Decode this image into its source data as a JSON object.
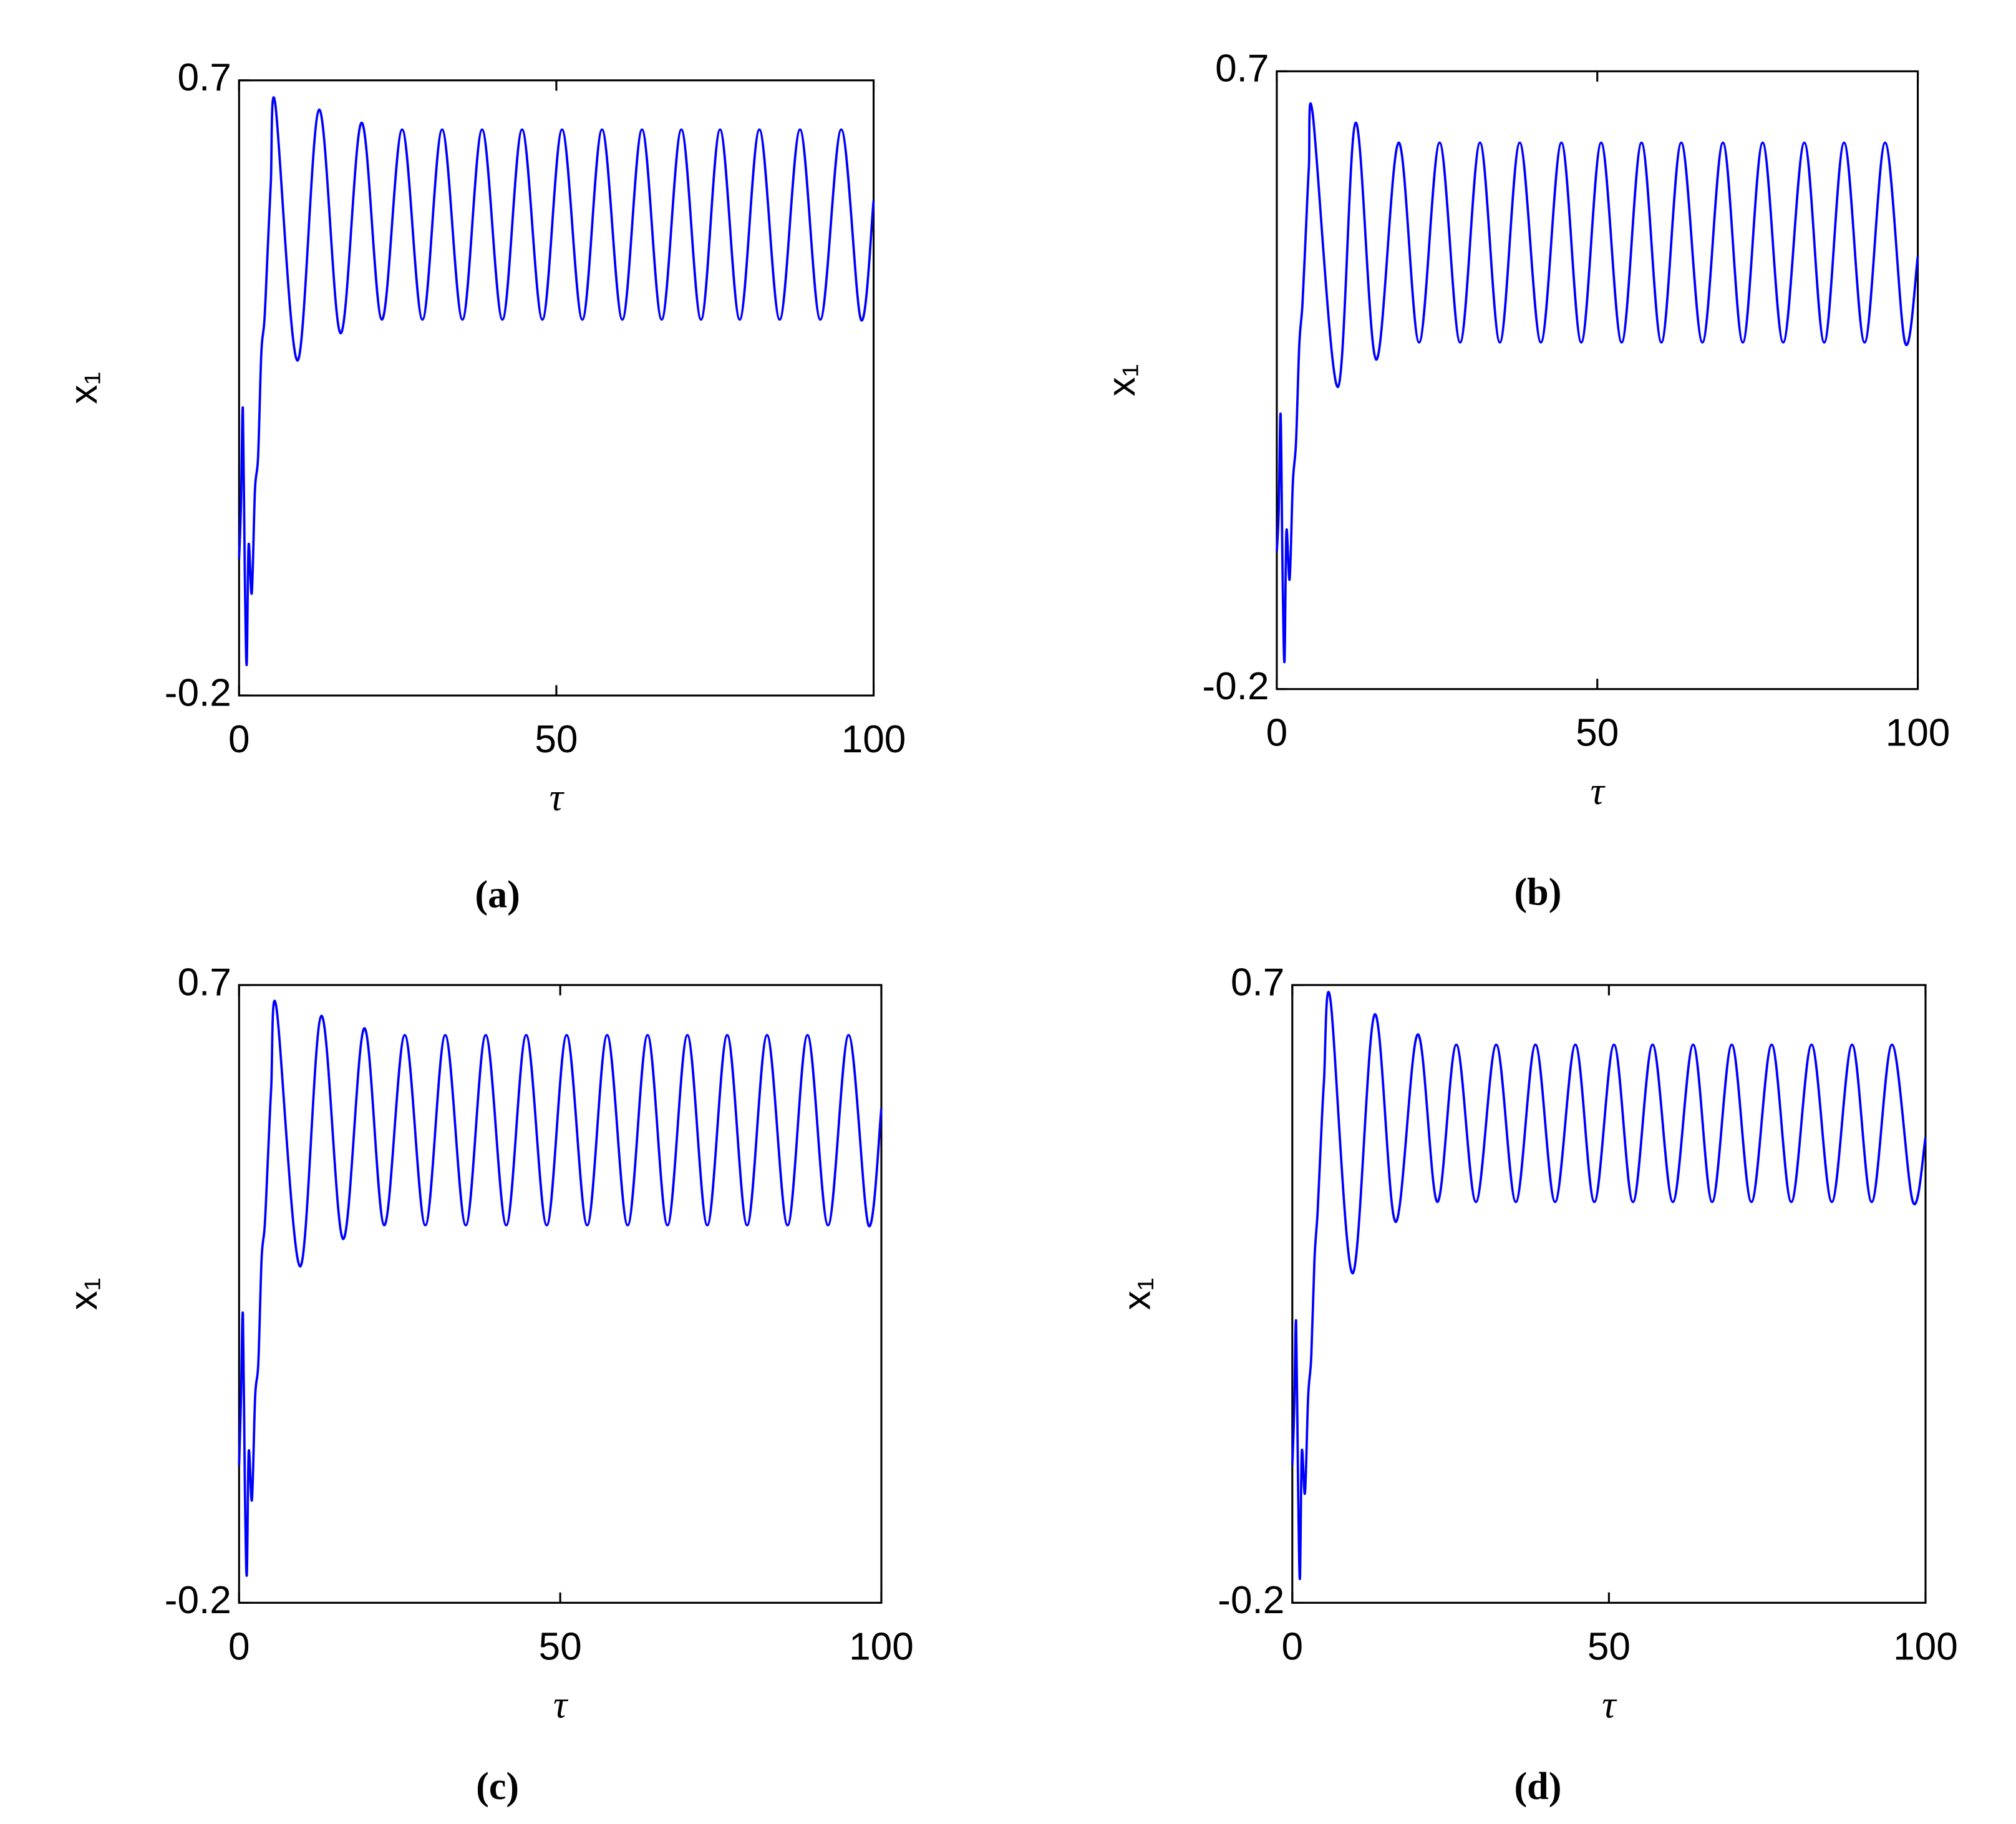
{
  "chart_data": [
    {
      "type": "line",
      "label": "(a)",
      "xlabel": "τ",
      "ylabel": "x₁",
      "color": "#0000ff",
      "xlim": [
        0,
        100
      ],
      "ylim": [
        -0.2,
        0.7
      ],
      "xticks": [
        0,
        50,
        100
      ],
      "yticks": [
        -0.2,
        0.7
      ],
      "x": [
        0,
        0.3,
        0.6,
        0.9,
        1.2,
        1.5,
        2,
        2.5,
        3,
        3.5,
        4,
        4.5,
        5,
        5.7,
        9.2,
        12.6,
        16,
        19.3,
        22.5,
        25.7,
        28.9,
        32,
        35.2,
        38.3,
        41.5,
        44.6,
        47.8,
        50.9,
        54.1,
        57.2,
        60.4,
        63.5,
        66.6,
        69.7,
        72.8,
        75.8,
        78.9,
        82,
        85.2,
        88.4,
        91.6,
        94.9,
        98,
        100
      ],
      "values": [
        0.0,
        0.08,
        0.22,
        -0.02,
        -0.155,
        0.02,
        -0.05,
        0.1,
        0.15,
        0.3,
        0.35,
        0.45,
        0.55,
        0.666,
        0.29,
        0.657,
        0.33,
        0.638,
        0.35,
        0.628,
        0.35,
        0.628,
        0.35,
        0.628,
        0.35,
        0.628,
        0.35,
        0.628,
        0.35,
        0.628,
        0.35,
        0.628,
        0.35,
        0.628,
        0.35,
        0.628,
        0.35,
        0.628,
        0.35,
        0.628,
        0.35,
        0.628,
        0.35,
        0.524
      ]
    },
    {
      "type": "line",
      "label": "(b)",
      "xlabel": "τ",
      "ylabel": "x₁",
      "color": "#0000ff",
      "xlim": [
        0,
        100
      ],
      "ylim": [
        -0.2,
        0.7
      ],
      "xticks": [
        0,
        50,
        100
      ],
      "yticks": [
        -0.2,
        0.7
      ],
      "x": [
        0,
        0.3,
        0.6,
        0.9,
        1.2,
        1.5,
        2,
        2.5,
        3,
        3.5,
        4,
        4.5,
        5,
        5.6,
        9.5,
        12.3,
        15.5,
        19,
        22.2,
        25.4,
        28.6,
        31.7,
        34.8,
        37.9,
        41.2,
        44.4,
        47.5,
        50.6,
        53.8,
        56.9,
        60,
        63.1,
        66.4,
        69.6,
        72.7,
        75.8,
        79,
        82.3,
        85.4,
        88.5,
        91.7,
        94.9,
        98,
        100
      ],
      "values": [
        0.0,
        0.06,
        0.2,
        -0.03,
        -0.16,
        0.03,
        -0.04,
        0.1,
        0.16,
        0.3,
        0.36,
        0.46,
        0.56,
        0.638,
        0.24,
        0.625,
        0.28,
        0.596,
        0.305,
        0.596,
        0.305,
        0.596,
        0.305,
        0.596,
        0.305,
        0.596,
        0.305,
        0.596,
        0.305,
        0.596,
        0.305,
        0.596,
        0.305,
        0.596,
        0.305,
        0.596,
        0.305,
        0.596,
        0.305,
        0.596,
        0.305,
        0.596,
        0.305,
        0.43
      ]
    },
    {
      "type": "line",
      "label": "(c)",
      "xlabel": "τ",
      "ylabel": "x₁",
      "color": "#0000ff",
      "xlim": [
        0,
        100
      ],
      "ylim": [
        -0.2,
        0.7
      ],
      "xticks": [
        0,
        50,
        100
      ],
      "yticks": [
        -0.2,
        0.7
      ],
      "x": [
        0,
        0.3,
        0.6,
        0.9,
        1.2,
        1.5,
        2,
        2.5,
        3,
        3.5,
        4,
        4.5,
        5,
        5.8,
        9.5,
        12.8,
        16.2,
        19.5,
        22.6,
        25.8,
        29,
        32.1,
        35.3,
        38.4,
        41.6,
        44.7,
        47.9,
        51,
        54.2,
        57.3,
        60.5,
        63.6,
        66.7,
        69.8,
        72.9,
        76,
        79.1,
        82.2,
        85.4,
        88.5,
        91.7,
        94.9,
        98,
        100
      ],
      "values": [
        0.0,
        0.1,
        0.22,
        -0.03,
        -0.16,
        0.02,
        -0.05,
        0.1,
        0.15,
        0.3,
        0.35,
        0.45,
        0.55,
        0.668,
        0.29,
        0.655,
        0.33,
        0.637,
        0.35,
        0.627,
        0.35,
        0.627,
        0.35,
        0.627,
        0.35,
        0.627,
        0.35,
        0.627,
        0.35,
        0.627,
        0.35,
        0.627,
        0.35,
        0.627,
        0.35,
        0.627,
        0.35,
        0.627,
        0.35,
        0.627,
        0.35,
        0.627,
        0.35,
        0.52
      ]
    },
    {
      "type": "line",
      "label": "(d)",
      "xlabel": "τ",
      "ylabel": "x₁",
      "color": "#0000ff",
      "xlim": [
        0,
        100
      ],
      "ylim": [
        -0.2,
        0.7
      ],
      "xticks": [
        0,
        50,
        100
      ],
      "yticks": [
        -0.2,
        0.7
      ],
      "x": [
        0,
        0.3,
        0.6,
        0.9,
        1.2,
        1.5,
        2,
        2.5,
        3,
        3.5,
        4,
        4.5,
        5,
        6,
        9.5,
        13,
        16.3,
        19.8,
        22.9,
        25.9,
        29,
        32.2,
        35.3,
        38.4,
        41.5,
        44.7,
        47.7,
        50.8,
        53.8,
        56.9,
        60.1,
        63.3,
        66.3,
        69.4,
        72.5,
        75.7,
        78.8,
        82,
        85.2,
        88.4,
        91.5,
        94.7,
        98,
        100
      ],
      "values": [
        0.0,
        0.08,
        0.21,
        -0.02,
        -0.165,
        0.02,
        -0.04,
        0.1,
        0.16,
        0.3,
        0.37,
        0.47,
        0.56,
        0.68,
        0.28,
        0.657,
        0.355,
        0.628,
        0.384,
        0.613,
        0.384,
        0.613,
        0.384,
        0.613,
        0.384,
        0.613,
        0.384,
        0.613,
        0.384,
        0.613,
        0.384,
        0.613,
        0.384,
        0.613,
        0.384,
        0.613,
        0.384,
        0.613,
        0.384,
        0.613,
        0.384,
        0.613,
        0.384,
        0.478
      ]
    }
  ]
}
